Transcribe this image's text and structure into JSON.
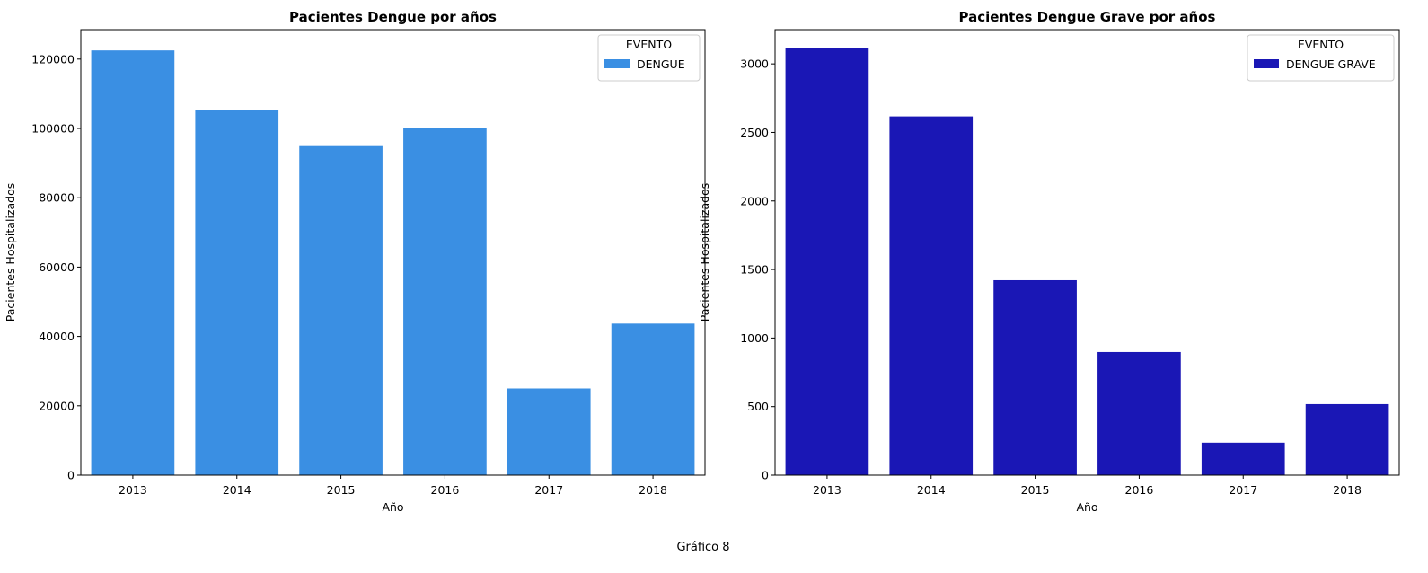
{
  "figure_caption": "Gráfico 8",
  "chart_data": [
    {
      "type": "bar",
      "title": "Pacientes Dengue por años",
      "xlabel": "Año",
      "ylabel": "Pacientes Hospitalizados",
      "categories": [
        "2013",
        "2014",
        "2015",
        "2016",
        "2017",
        "2018"
      ],
      "series": [
        {
          "name": "DENGUE",
          "color": "#3a8fe3",
          "values": [
            122500,
            105400,
            94900,
            100100,
            25000,
            43700
          ]
        }
      ],
      "ylim": [
        0,
        128500
      ],
      "yticks": [
        0,
        20000,
        40000,
        60000,
        80000,
        100000,
        120000
      ],
      "ytick_labels": [
        "0",
        "20000",
        "40000",
        "60000",
        "80000",
        "100000",
        "120000"
      ],
      "legend_title": "EVENTO",
      "legend_position": "top-right",
      "grid": false
    },
    {
      "type": "bar",
      "title": "Pacientes Dengue Grave por años",
      "xlabel": "Año",
      "ylabel": "Pacientes Hospitalizados",
      "categories": [
        "2013",
        "2014",
        "2015",
        "2016",
        "2017",
        "2018"
      ],
      "series": [
        {
          "name": "DENGUE GRAVE",
          "color": "#1a17b5",
          "values": [
            3115,
            2617,
            1422,
            898,
            237,
            518
          ]
        }
      ],
      "ylim": [
        0,
        3250
      ],
      "yticks": [
        0,
        500,
        1000,
        1500,
        2000,
        2500,
        3000
      ],
      "ytick_labels": [
        "0",
        "500",
        "1000",
        "1500",
        "2000",
        "2500",
        "3000"
      ],
      "legend_title": "EVENTO",
      "legend_position": "top-right",
      "grid": false
    }
  ]
}
